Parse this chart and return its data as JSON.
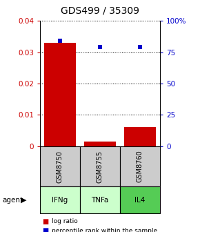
{
  "title": "GDS499 / 35309",
  "samples": [
    "GSM8750",
    "GSM8755",
    "GSM8760"
  ],
  "agents": [
    "IFNg",
    "TNFa",
    "IL4"
  ],
  "log_ratios": [
    0.033,
    0.0015,
    0.006
  ],
  "percentile_ranks": [
    84,
    79,
    79
  ],
  "bar_color": "#cc0000",
  "dot_color": "#0000cc",
  "ylim_left": [
    0,
    0.04
  ],
  "ylim_right": [
    0,
    100
  ],
  "yticks_left": [
    0,
    0.01,
    0.02,
    0.03,
    0.04
  ],
  "yticks_right": [
    0,
    25,
    50,
    75,
    100
  ],
  "ytick_labels_left": [
    "0",
    "0.01",
    "0.02",
    "0.03",
    "0.04"
  ],
  "ytick_labels_right": [
    "0",
    "25",
    "50",
    "75",
    "100%"
  ],
  "agent_colors": [
    "#ccffcc",
    "#ccffcc",
    "#55cc55"
  ],
  "sample_box_color": "#cccccc",
  "legend_log_ratio": "log ratio",
  "legend_percentile": "percentile rank within the sample",
  "agent_label": "agent"
}
